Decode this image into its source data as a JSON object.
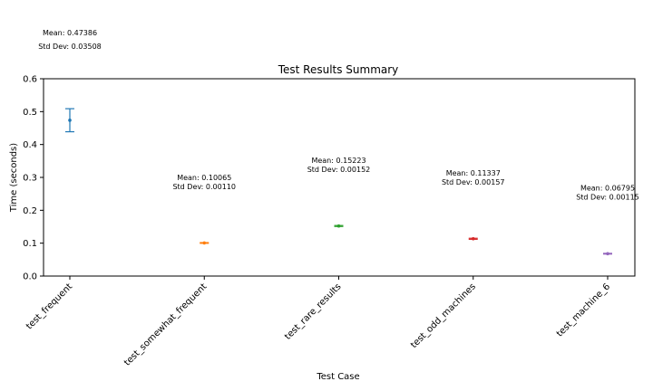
{
  "chart_data": {
    "type": "errorbar",
    "title": "Test Results Summary",
    "xlabel": "Test Case",
    "ylabel": "Time (seconds)",
    "ylim": [
      0,
      0.6
    ],
    "yticks": [
      "0.0",
      "0.1",
      "0.2",
      "0.3",
      "0.4",
      "0.5",
      "0.6"
    ],
    "grid": false,
    "series": [
      {
        "category": "test_frequent",
        "mean": 0.47386,
        "std": 0.03508,
        "color": "#1f77b4",
        "mean_label": "Mean: 0.47386",
        "std_label": "Std Dev: 0.03508"
      },
      {
        "category": "test_somewhat_frequent",
        "mean": 0.10065,
        "std": 0.0011,
        "color": "#ff7f0e",
        "mean_label": "Mean: 0.10065",
        "std_label": "Std Dev: 0.00110"
      },
      {
        "category": "test_rare_results",
        "mean": 0.15223,
        "std": 0.00152,
        "color": "#2ca02c",
        "mean_label": "Mean: 0.15223",
        "std_label": "Std Dev: 0.00152"
      },
      {
        "category": "test_odd_machines",
        "mean": 0.11337,
        "std": 0.00157,
        "color": "#d62728",
        "mean_label": "Mean: 0.11337",
        "std_label": "Std Dev: 0.00157"
      },
      {
        "category": "test_machine_6",
        "mean": 0.06795,
        "std": 0.00115,
        "color": "#9467bd",
        "mean_label": "Mean: 0.06795",
        "std_label": "Std Dev: 0.00115"
      }
    ]
  }
}
